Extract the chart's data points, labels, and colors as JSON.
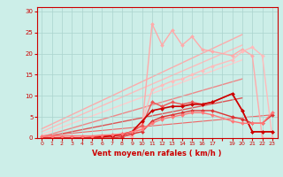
{
  "background_color": "#cceee8",
  "grid_color": "#aad4ce",
  "xlabel": "Vent moyen/en rafales ( km/h )",
  "xlim": [
    -0.5,
    23.5
  ],
  "ylim": [
    0,
    31
  ],
  "yticks": [
    0,
    5,
    10,
    15,
    20,
    25,
    30
  ],
  "xtick_labels": [
    "0",
    "1",
    "2",
    "3",
    "4",
    "5",
    "6",
    "7",
    "8",
    "9",
    "10",
    "11",
    "12",
    "13",
    "14",
    "15",
    "16",
    "17",
    "",
    "19",
    "20",
    "21",
    "22",
    "23"
  ],
  "xtick_pos": [
    0,
    1,
    2,
    3,
    4,
    5,
    6,
    7,
    8,
    9,
    10,
    11,
    12,
    13,
    14,
    15,
    16,
    17,
    18,
    19,
    20,
    21,
    22,
    23
  ],
  "lines": [
    {
      "x": [
        0,
        20
      ],
      "y": [
        2.2,
        24.5
      ],
      "color": "#ffaaaa",
      "lw": 1.0,
      "marker": null
    },
    {
      "x": [
        0,
        20
      ],
      "y": [
        1.5,
        22.0
      ],
      "color": "#ffbbbb",
      "lw": 1.0,
      "marker": null
    },
    {
      "x": [
        0,
        20
      ],
      "y": [
        0.8,
        18.5
      ],
      "color": "#ffcccc",
      "lw": 1.0,
      "marker": null
    },
    {
      "x": [
        0,
        20
      ],
      "y": [
        0.3,
        14.0
      ],
      "color": "#ee8888",
      "lw": 1.0,
      "marker": null
    },
    {
      "x": [
        0,
        20
      ],
      "y": [
        0.1,
        9.5
      ],
      "color": "#dd5555",
      "lw": 1.0,
      "marker": null
    },
    {
      "x": [
        0,
        1,
        2,
        3,
        4,
        5,
        6,
        7,
        8,
        9,
        10,
        11,
        12,
        13,
        14,
        15,
        16,
        17,
        19,
        20,
        21,
        22,
        23
      ],
      "y": [
        0.5,
        0.5,
        0.5,
        0.5,
        0.5,
        0.5,
        0.5,
        0.5,
        0.5,
        0.5,
        2.5,
        27.0,
        22.0,
        25.5,
        22.0,
        24.0,
        21.0,
        20.5,
        19.5,
        21.0,
        19.5,
        0.0,
        0.0
      ],
      "color": "#ffaaaa",
      "lw": 1.0,
      "marker": "D",
      "ms": 2.0
    },
    {
      "x": [
        0,
        1,
        2,
        3,
        4,
        5,
        6,
        7,
        8,
        9,
        10,
        11,
        12,
        13,
        14,
        15,
        16,
        17,
        19,
        20,
        21,
        22,
        23
      ],
      "y": [
        0.5,
        0.5,
        0.5,
        0.5,
        0.5,
        0.5,
        0.5,
        0.5,
        0.5,
        1.0,
        3.5,
        11.5,
        12.5,
        13.5,
        14.0,
        15.0,
        16.0,
        17.0,
        18.5,
        20.5,
        21.5,
        19.5,
        0.0
      ],
      "color": "#ffbbbb",
      "lw": 1.0,
      "marker": "D",
      "ms": 2.0
    },
    {
      "x": [
        0,
        1,
        2,
        3,
        4,
        5,
        6,
        7,
        8,
        9,
        10,
        11,
        12,
        13,
        14,
        15,
        16,
        17,
        19,
        20,
        21,
        22,
        23
      ],
      "y": [
        0.0,
        0.0,
        0.0,
        0.0,
        0.0,
        0.3,
        0.5,
        0.7,
        1.0,
        1.5,
        3.0,
        8.5,
        7.5,
        8.5,
        8.0,
        8.5,
        8.0,
        8.5,
        10.5,
        6.5,
        1.5,
        1.5,
        1.5
      ],
      "color": "#ee5555",
      "lw": 1.0,
      "marker": "D",
      "ms": 2.0
    },
    {
      "x": [
        0,
        1,
        2,
        3,
        4,
        5,
        6,
        7,
        8,
        9,
        10,
        11,
        12,
        13,
        14,
        15,
        16,
        17,
        19,
        20,
        21,
        22,
        23
      ],
      "y": [
        0.0,
        0.0,
        0.0,
        0.0,
        0.0,
        0.0,
        0.3,
        0.5,
        0.8,
        1.5,
        4.0,
        6.5,
        7.0,
        7.5,
        7.5,
        8.0,
        8.0,
        8.5,
        10.5,
        6.5,
        1.5,
        1.5,
        1.5
      ],
      "color": "#cc0000",
      "lw": 1.2,
      "marker": "D",
      "ms": 2.0
    },
    {
      "x": [
        0,
        1,
        2,
        3,
        4,
        5,
        6,
        7,
        8,
        9,
        10,
        11,
        12,
        13,
        14,
        15,
        16,
        17,
        19,
        20,
        21,
        22,
        23
      ],
      "y": [
        0.0,
        0.0,
        0.0,
        0.0,
        0.0,
        0.0,
        0.0,
        0.0,
        0.3,
        1.0,
        1.5,
        4.0,
        5.0,
        5.5,
        6.0,
        6.5,
        6.5,
        6.5,
        5.0,
        4.5,
        3.5,
        3.5,
        5.5
      ],
      "color": "#dd3333",
      "lw": 1.0,
      "marker": "D",
      "ms": 2.0
    },
    {
      "x": [
        0,
        1,
        2,
        3,
        4,
        5,
        6,
        7,
        8,
        9,
        10,
        11,
        12,
        13,
        14,
        15,
        16,
        17,
        19,
        20,
        21,
        22,
        23
      ],
      "y": [
        0.5,
        0.5,
        0.5,
        0.5,
        0.5,
        0.5,
        0.7,
        0.8,
        1.0,
        1.5,
        2.0,
        3.5,
        4.5,
        5.0,
        5.5,
        6.0,
        6.0,
        5.5,
        4.0,
        3.5,
        3.5,
        3.5,
        6.0
      ],
      "color": "#ff7777",
      "lw": 1.0,
      "marker": "D",
      "ms": 2.0
    },
    {
      "x": [
        0,
        23
      ],
      "y": [
        0.5,
        5.5
      ],
      "color": "#ee6666",
      "lw": 0.8,
      "marker": null
    }
  ]
}
